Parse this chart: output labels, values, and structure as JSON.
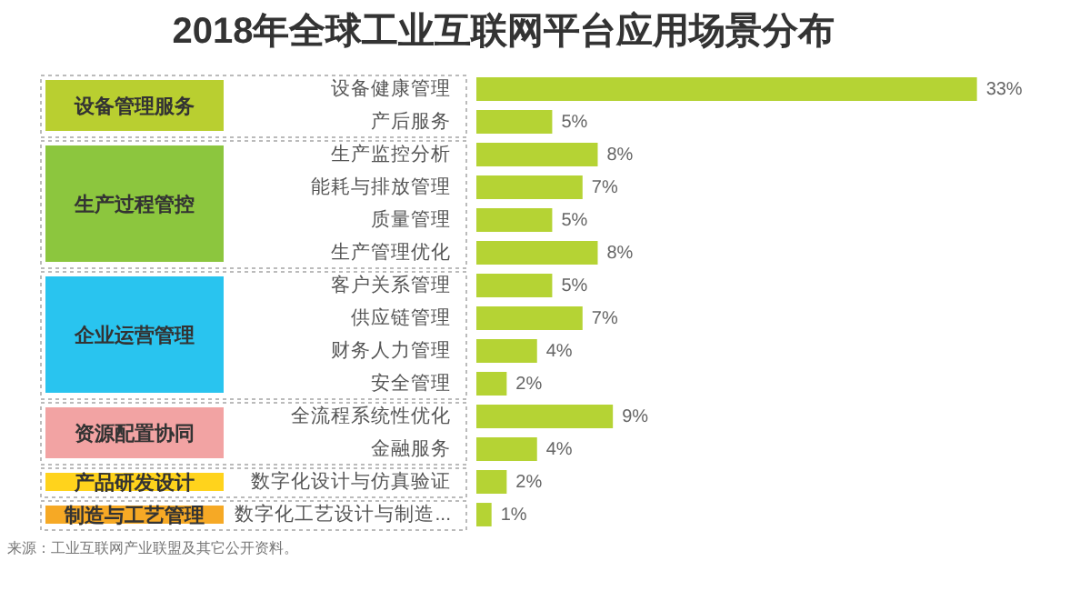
{
  "chart_data": {
    "type": "bar",
    "orientation": "horizontal",
    "title": "2018年全球工业互联网平台应用场景分布",
    "categories": [
      "设备健康管理",
      "产后服务",
      "生产监控分析",
      "能耗与排放管理",
      "质量管理",
      "生产管理优化",
      "客户关系管理",
      "供应链管理",
      "财务人力管理",
      "安全管理",
      "全流程系统性优化",
      "金融服务",
      "数字化设计与仿真验证",
      "数字化工艺设计与制造..."
    ],
    "values": [
      33,
      5,
      8,
      7,
      5,
      8,
      5,
      7,
      4,
      2,
      9,
      4,
      2,
      1
    ],
    "value_labels": [
      "33%",
      "5%",
      "8%",
      "7%",
      "5%",
      "8%",
      "5%",
      "7%",
      "4%",
      "2%",
      "9%",
      "4%",
      "2%",
      "1%"
    ],
    "color": "#b5d334",
    "annotations": [
      "设备管理服务",
      "生产过程管控",
      "企业运营管理",
      "资源配置协同",
      "产品研发设计",
      "制造与工艺管理",
      "来源：工业互联网产业联盟及其它公开资料。"
    ],
    "grid": false,
    "legend": false
  }
}
